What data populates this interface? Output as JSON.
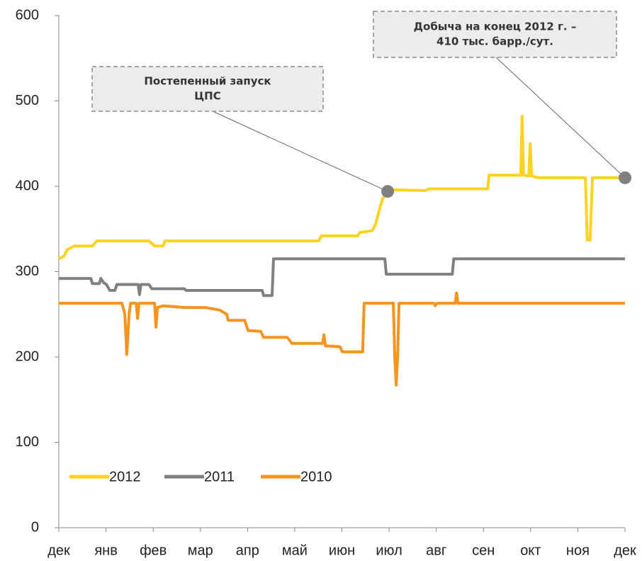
{
  "chart_data": {
    "type": "line",
    "xlim": [
      0,
      12
    ],
    "xticks": [
      {
        "value": 0,
        "label": "дек"
      },
      {
        "value": 1,
        "label": "янв"
      },
      {
        "value": 2,
        "label": "фев"
      },
      {
        "value": 3,
        "label": "мар"
      },
      {
        "value": 4,
        "label": "апр"
      },
      {
        "value": 5,
        "label": "май"
      },
      {
        "value": 6,
        "label": "июн"
      },
      {
        "value": 7,
        "label": "июл"
      },
      {
        "value": 8,
        "label": "авг"
      },
      {
        "value": 9,
        "label": "сен"
      },
      {
        "value": 10,
        "label": "окт"
      },
      {
        "value": 11,
        "label": "ноя"
      },
      {
        "value": 12,
        "label": "дек"
      }
    ],
    "ylim": [
      0,
      600
    ],
    "yticks": [
      0,
      100,
      200,
      300,
      400,
      500,
      600
    ],
    "legend": "lower left",
    "series": [
      {
        "name": "2012",
        "color": "#ffd21f",
        "x": [
          0,
          0.105,
          0.18,
          0.33,
          0.71,
          0.81,
          1.91,
          2.03,
          2.21,
          2.25,
          5.51,
          5.56,
          6.34,
          6.38,
          6.64,
          6.71,
          6.82,
          6.86,
          6.97,
          7.01,
          7.77,
          7.84,
          9.09,
          9.12,
          9.79,
          9.82,
          9.85,
          9.96,
          9.99,
          10.02,
          10.17,
          11.16,
          11.2,
          11.26,
          11.31,
          12
        ],
        "values": [
          315,
          318,
          326,
          330,
          330,
          336,
          336,
          330,
          330,
          336,
          336,
          342,
          342,
          346,
          348,
          355,
          378,
          385,
          394,
          396,
          395,
          397,
          397,
          413,
          413,
          482,
          413,
          412,
          450,
          412,
          410,
          410,
          337,
          337,
          410,
          410
        ]
      },
      {
        "name": "2011",
        "color": "#808080",
        "x": [
          0,
          0.68,
          0.71,
          0.86,
          0.89,
          0.95,
          1.01,
          1.08,
          1.19,
          1.23,
          1.68,
          1.71,
          1.74,
          1.91,
          1.97,
          2.66,
          2.7,
          4.31,
          4.34,
          4.52,
          4.55,
          6.91,
          6.94,
          8.34,
          8.37,
          12
        ],
        "values": [
          292,
          292,
          286,
          286,
          292,
          287,
          285,
          278,
          278,
          285,
          285,
          273,
          285,
          285,
          280,
          280,
          278,
          278,
          272,
          272,
          315,
          315,
          297,
          297,
          315,
          315
        ]
      },
      {
        "name": "2010",
        "color": "#f7941d",
        "x": [
          0,
          1.34,
          1.4,
          1.44,
          1.49,
          1.52,
          1.64,
          1.67,
          1.7,
          2.03,
          2.06,
          2.09,
          2.21,
          2.66,
          3.11,
          3.41,
          3.56,
          3.59,
          3.94,
          4.01,
          4.28,
          4.34,
          4.84,
          4.94,
          5.59,
          5.62,
          5.65,
          5.96,
          6.01,
          6.44,
          6.47,
          7.09,
          7.12,
          7.15,
          7.18,
          7.21,
          7.95,
          7.98,
          8.01,
          8.4,
          8.43,
          8.46,
          12
        ],
        "values": [
          263,
          263,
          250,
          203,
          250,
          263,
          263,
          245,
          263,
          263,
          235,
          258,
          260,
          258,
          258,
          255,
          250,
          243,
          243,
          231,
          230,
          223,
          223,
          216,
          216,
          226,
          213,
          212,
          206,
          206,
          263,
          263,
          200,
          167,
          200,
          263,
          263,
          260,
          263,
          263,
          275,
          263,
          263
        ]
      }
    ],
    "annotations": [
      {
        "lines": [
          "Постепенный запуск",
          "ЦПС"
        ],
        "x": 6.97,
        "y": 394
      },
      {
        "lines": [
          "Добыча на конец 2012 г. –",
          "410 тыс. барр./сут."
        ],
        "x": 12,
        "y": 410
      }
    ]
  }
}
